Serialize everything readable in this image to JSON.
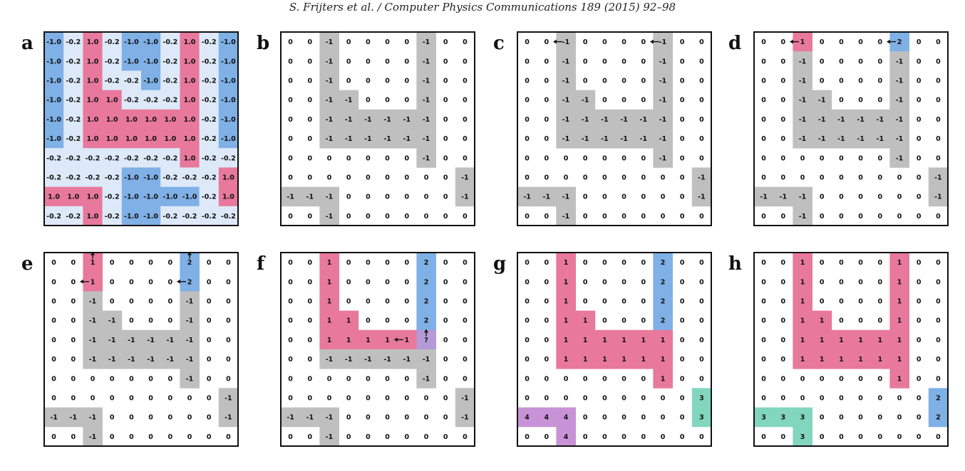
{
  "header": "S. Frijters et al. / Computer Physics Communications 189 (2015) 92–98",
  "colors": {
    "pink": "#e8799c",
    "blue": "#7fb0e6",
    "lightblue": "#dde9f8",
    "gray": "#bfbfbf",
    "teal": "#82d6bd",
    "purple": "#c893d6",
    "lavender": "#b49ad6",
    "white": "#ffffff"
  },
  "panels": [
    {
      "label": "a",
      "values": [
        [
          "-1.0",
          "-0.2",
          "1.0",
          "-0.2",
          "-1.0",
          "-1.0",
          "-0.2",
          "1.0",
          "-0.2",
          "-1.0"
        ],
        [
          "-1.0",
          "-0.2",
          "1.0",
          "-0.2",
          "-1.0",
          "-1.0",
          "-0.2",
          "1.0",
          "-0.2",
          "-1.0"
        ],
        [
          "-1.0",
          "-0.2",
          "1.0",
          "-0.2",
          "-0.2",
          "-1.0",
          "-0.2",
          "1.0",
          "-0.2",
          "-1.0"
        ],
        [
          "-1.0",
          "-0.2",
          "1.0",
          "1.0",
          "-0.2",
          "-0.2",
          "-0.2",
          "1.0",
          "-0.2",
          "-1.0"
        ],
        [
          "-1.0",
          "-0.2",
          "1.0",
          "1.0",
          "1.0",
          "1.0",
          "1.0",
          "1.0",
          "-0.2",
          "-1.0"
        ],
        [
          "-1.0",
          "-0.2",
          "1.0",
          "1.0",
          "1.0",
          "1.0",
          "1.0",
          "1.0",
          "-0.2",
          "-1.0"
        ],
        [
          "-0.2",
          "-0.2",
          "-0.2",
          "-0.2",
          "-0.2",
          "-0.2",
          "-0.2",
          "1.0",
          "-0.2",
          "-0.2"
        ],
        [
          "-0.2",
          "-0.2",
          "-0.2",
          "-0.2",
          "-1.0",
          "-1.0",
          "-0.2",
          "-0.2",
          "-0.2",
          "1.0"
        ],
        [
          "1.0",
          "1.0",
          "1.0",
          "-0.2",
          "-1.0",
          "-1.0",
          "-1.0",
          "-1.0",
          "-0.2",
          "1.0"
        ],
        [
          "-0.2",
          "-0.2",
          "1.0",
          "-0.2",
          "-1.0",
          "-1.0",
          "-0.2",
          "-0.2",
          "-0.2",
          "-0.2"
        ]
      ],
      "fills": [
        "BLPLBBLPLB",
        "BLPLBBLPLB",
        "BLPLLBLPLB",
        "BLPPLLLPLB",
        "BLPPPPPPLB",
        "BLPPPPPPLB",
        "LLLLLLLPLL",
        "LLLLBBLLLP",
        "PPPLBBBBLP",
        "LLPLBBLLLL"
      ],
      "arrows": []
    },
    {
      "label": "b",
      "values": [
        [
          "0",
          "0",
          "-1",
          "0",
          "0",
          "0",
          "0",
          "-1",
          "0",
          "0"
        ],
        [
          "0",
          "0",
          "-1",
          "0",
          "0",
          "0",
          "0",
          "-1",
          "0",
          "0"
        ],
        [
          "0",
          "0",
          "-1",
          "0",
          "0",
          "0",
          "0",
          "-1",
          "0",
          "0"
        ],
        [
          "0",
          "0",
          "-1",
          "-1",
          "0",
          "0",
          "0",
          "-1",
          "0",
          "0"
        ],
        [
          "0",
          "0",
          "-1",
          "-1",
          "-1",
          "-1",
          "-1",
          "-1",
          "0",
          "0"
        ],
        [
          "0",
          "0",
          "-1",
          "-1",
          "-1",
          "-1",
          "-1",
          "-1",
          "0",
          "0"
        ],
        [
          "0",
          "0",
          "0",
          "0",
          "0",
          "0",
          "0",
          "-1",
          "0",
          "0"
        ],
        [
          "0",
          "0",
          "0",
          "0",
          "0",
          "0",
          "0",
          "0",
          "0",
          "-1"
        ],
        [
          "-1",
          "-1",
          "-1",
          "0",
          "0",
          "0",
          "0",
          "0",
          "0",
          "-1"
        ],
        [
          "0",
          "0",
          "-1",
          "0",
          "0",
          "0",
          "0",
          "0",
          "0",
          "0"
        ]
      ],
      "fills": [
        "..G....G..",
        "..G....G..",
        "..G....G..",
        "..GG...G..",
        "..GGGGGG..",
        "..GGGGGG..",
        ".......G..",
        ".........G",
        "GGG......G",
        "..G......."
      ],
      "arrows": []
    },
    {
      "label": "c",
      "values": [
        [
          "0",
          "0",
          "-1",
          "0",
          "0",
          "0",
          "0",
          "-1",
          "0",
          "0"
        ],
        [
          "0",
          "0",
          "-1",
          "0",
          "0",
          "0",
          "0",
          "-1",
          "0",
          "0"
        ],
        [
          "0",
          "0",
          "-1",
          "0",
          "0",
          "0",
          "0",
          "-1",
          "0",
          "0"
        ],
        [
          "0",
          "0",
          "-1",
          "-1",
          "0",
          "0",
          "0",
          "-1",
          "0",
          "0"
        ],
        [
          "0",
          "0",
          "-1",
          "-1",
          "-1",
          "-1",
          "-1",
          "-1",
          "0",
          "0"
        ],
        [
          "0",
          "0",
          "-1",
          "-1",
          "-1",
          "-1",
          "-1",
          "-1",
          "0",
          "0"
        ],
        [
          "0",
          "0",
          "0",
          "0",
          "0",
          "0",
          "0",
          "-1",
          "0",
          "0"
        ],
        [
          "0",
          "0",
          "0",
          "0",
          "0",
          "0",
          "0",
          "0",
          "0",
          "-1"
        ],
        [
          "-1",
          "-1",
          "-1",
          "0",
          "0",
          "0",
          "0",
          "0",
          "0",
          "-1"
        ],
        [
          "0",
          "0",
          "-1",
          "0",
          "0",
          "0",
          "0",
          "0",
          "0",
          "0"
        ]
      ],
      "fills": [
        "..G....G..",
        "..G....G..",
        "..G....G..",
        "..GG...G..",
        "..GGGGGG..",
        "..GGGGGG..",
        ".......G..",
        ".........G",
        "GGG......G",
        "..G......."
      ],
      "arrows": [
        [
          0,
          2,
          "left"
        ],
        [
          0,
          7,
          "left"
        ]
      ]
    },
    {
      "label": "d",
      "values": [
        [
          "0",
          "0",
          "1",
          "0",
          "0",
          "0",
          "0",
          "2",
          "0",
          "0"
        ],
        [
          "0",
          "0",
          "-1",
          "0",
          "0",
          "0",
          "0",
          "-1",
          "0",
          "0"
        ],
        [
          "0",
          "0",
          "-1",
          "0",
          "0",
          "0",
          "0",
          "-1",
          "0",
          "0"
        ],
        [
          "0",
          "0",
          "-1",
          "-1",
          "0",
          "0",
          "0",
          "-1",
          "0",
          "0"
        ],
        [
          "0",
          "0",
          "-1",
          "-1",
          "-1",
          "-1",
          "-1",
          "-1",
          "0",
          "0"
        ],
        [
          "0",
          "0",
          "-1",
          "-1",
          "-1",
          "-1",
          "-1",
          "-1",
          "0",
          "0"
        ],
        [
          "0",
          "0",
          "0",
          "0",
          "0",
          "0",
          "0",
          "-1",
          "0",
          "0"
        ],
        [
          "0",
          "0",
          "0",
          "0",
          "0",
          "0",
          "0",
          "0",
          "0",
          "-1"
        ],
        [
          "-1",
          "-1",
          "-1",
          "0",
          "0",
          "0",
          "0",
          "0",
          "0",
          "-1"
        ],
        [
          "0",
          "0",
          "-1",
          "0",
          "0",
          "0",
          "0",
          "0",
          "0",
          "0"
        ]
      ],
      "fills": [
        "..P....B..",
        "..G....G..",
        "..G....G..",
        "..GG...G..",
        "..GGGGGG..",
        "..GGGGGG..",
        ".......G..",
        ".........G",
        "GGG......G",
        "..G......."
      ],
      "arrows": [
        [
          0,
          2,
          "left"
        ],
        [
          0,
          7,
          "left"
        ]
      ]
    },
    {
      "label": "e",
      "values": [
        [
          "0",
          "0",
          "1",
          "0",
          "0",
          "0",
          "0",
          "2",
          "0",
          "0"
        ],
        [
          "0",
          "0",
          "1",
          "0",
          "0",
          "0",
          "0",
          "2",
          "0",
          "0"
        ],
        [
          "0",
          "0",
          "-1",
          "0",
          "0",
          "0",
          "0",
          "-1",
          "0",
          "0"
        ],
        [
          "0",
          "0",
          "-1",
          "-1",
          "0",
          "0",
          "0",
          "-1",
          "0",
          "0"
        ],
        [
          "0",
          "0",
          "-1",
          "-1",
          "-1",
          "-1",
          "-1",
          "-1",
          "0",
          "0"
        ],
        [
          "0",
          "0",
          "-1",
          "-1",
          "-1",
          "-1",
          "-1",
          "-1",
          "0",
          "0"
        ],
        [
          "0",
          "0",
          "0",
          "0",
          "0",
          "0",
          "0",
          "-1",
          "0",
          "0"
        ],
        [
          "0",
          "0",
          "0",
          "0",
          "0",
          "0",
          "0",
          "0",
          "0",
          "-1"
        ],
        [
          "-1",
          "-1",
          "-1",
          "0",
          "0",
          "0",
          "0",
          "0",
          "0",
          "-1"
        ],
        [
          "0",
          "0",
          "-1",
          "0",
          "0",
          "0",
          "0",
          "0",
          "0",
          "0"
        ]
      ],
      "fills": [
        "..P....B..",
        "..P....B..",
        "..G....G..",
        "..GG...G..",
        "..GGGGGG..",
        "..GGGGGG..",
        ".......G..",
        ".........G",
        "GGG......G",
        "..G......."
      ],
      "arrows": [
        [
          0,
          2,
          "up"
        ],
        [
          0,
          7,
          "up"
        ],
        [
          1,
          2,
          "left"
        ],
        [
          1,
          7,
          "left"
        ]
      ]
    },
    {
      "label": "f",
      "values": [
        [
          "0",
          "0",
          "1",
          "0",
          "0",
          "0",
          "0",
          "2",
          "0",
          "0"
        ],
        [
          "0",
          "0",
          "1",
          "0",
          "0",
          "0",
          "0",
          "2",
          "0",
          "0"
        ],
        [
          "0",
          "0",
          "1",
          "0",
          "0",
          "0",
          "0",
          "2",
          "0",
          "0"
        ],
        [
          "0",
          "0",
          "1",
          "1",
          "0",
          "0",
          "0",
          "2",
          "0",
          "0"
        ],
        [
          "0",
          "0",
          "1",
          "1",
          "1",
          "1",
          "1",
          "?",
          "0",
          "0"
        ],
        [
          "0",
          "0",
          "-1",
          "-1",
          "-1",
          "-1",
          "-1",
          "-1",
          "0",
          "0"
        ],
        [
          "0",
          "0",
          "0",
          "0",
          "0",
          "0",
          "0",
          "-1",
          "0",
          "0"
        ],
        [
          "0",
          "0",
          "0",
          "0",
          "0",
          "0",
          "0",
          "0",
          "0",
          "-1"
        ],
        [
          "-1",
          "-1",
          "-1",
          "0",
          "0",
          "0",
          "0",
          "0",
          "0",
          "-1"
        ],
        [
          "0",
          "0",
          "-1",
          "0",
          "0",
          "0",
          "0",
          "0",
          "0",
          "0"
        ]
      ],
      "fills": [
        "..P....B..",
        "..P....B..",
        "..P....B..",
        "..PP...B..",
        "..PPPPPV..",
        "..GGGGGG..",
        ".......G..",
        ".........G",
        "GGG......G",
        "..G......."
      ],
      "arrows": [
        [
          4,
          6,
          "left"
        ],
        [
          4,
          7,
          "up"
        ]
      ]
    },
    {
      "label": "g",
      "values": [
        [
          "0",
          "0",
          "1",
          "0",
          "0",
          "0",
          "0",
          "2",
          "0",
          "0"
        ],
        [
          "0",
          "0",
          "1",
          "0",
          "0",
          "0",
          "0",
          "2",
          "0",
          "0"
        ],
        [
          "0",
          "0",
          "1",
          "0",
          "0",
          "0",
          "0",
          "2",
          "0",
          "0"
        ],
        [
          "0",
          "0",
          "1",
          "1",
          "0",
          "0",
          "0",
          "2",
          "0",
          "0"
        ],
        [
          "0",
          "0",
          "1",
          "1",
          "1",
          "1",
          "1",
          "1",
          "0",
          "0"
        ],
        [
          "0",
          "0",
          "1",
          "1",
          "1",
          "1",
          "1",
          "1",
          "0",
          "0"
        ],
        [
          "0",
          "0",
          "0",
          "0",
          "0",
          "0",
          "0",
          "1",
          "0",
          "0"
        ],
        [
          "0",
          "0",
          "0",
          "0",
          "0",
          "0",
          "0",
          "0",
          "0",
          "3"
        ],
        [
          "4",
          "4",
          "4",
          "0",
          "0",
          "0",
          "0",
          "0",
          "0",
          "3"
        ],
        [
          "0",
          "0",
          "4",
          "0",
          "0",
          "0",
          "0",
          "0",
          "0",
          "0"
        ]
      ],
      "fills": [
        "..P....B..",
        "..P....B..",
        "..P....B..",
        "..PP...B..",
        "..PPPPPP..",
        "..PPPPPP..",
        ".......P..",
        ".........T",
        "UUU......T",
        "..U......."
      ],
      "arrows": []
    },
    {
      "label": "h",
      "values": [
        [
          "0",
          "0",
          "1",
          "0",
          "0",
          "0",
          "0",
          "1",
          "0",
          "0"
        ],
        [
          "0",
          "0",
          "1",
          "0",
          "0",
          "0",
          "0",
          "1",
          "0",
          "0"
        ],
        [
          "0",
          "0",
          "1",
          "0",
          "0",
          "0",
          "0",
          "1",
          "0",
          "0"
        ],
        [
          "0",
          "0",
          "1",
          "1",
          "0",
          "0",
          "0",
          "1",
          "0",
          "0"
        ],
        [
          "0",
          "0",
          "1",
          "1",
          "1",
          "1",
          "1",
          "1",
          "0",
          "0"
        ],
        [
          "0",
          "0",
          "1",
          "1",
          "1",
          "1",
          "1",
          "1",
          "0",
          "0"
        ],
        [
          "0",
          "0",
          "0",
          "0",
          "0",
          "0",
          "0",
          "1",
          "0",
          "0"
        ],
        [
          "0",
          "0",
          "0",
          "0",
          "0",
          "0",
          "0",
          "0",
          "0",
          "2"
        ],
        [
          "3",
          "3",
          "3",
          "0",
          "0",
          "0",
          "0",
          "0",
          "0",
          "2"
        ],
        [
          "0",
          "0",
          "3",
          "0",
          "0",
          "0",
          "0",
          "0",
          "0",
          "0"
        ]
      ],
      "fills": [
        "..P....P..",
        "..P....P..",
        "..P....P..",
        "..PP...P..",
        "..PPPPPP..",
        "..PPPPPP..",
        ".......P..",
        ".........B",
        "TTT......B",
        "..T......."
      ],
      "arrows": []
    }
  ]
}
